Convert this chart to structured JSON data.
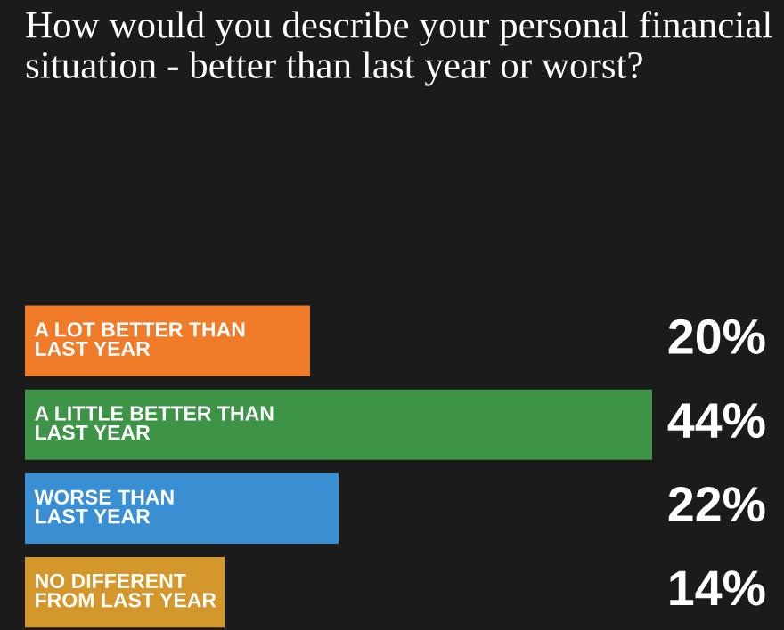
{
  "chart_data": {
    "type": "bar",
    "orientation": "horizontal",
    "title": "How would you describe your personal financial situation - better than last year or worst?",
    "categories": [
      "A LOT BETTER THAN\nLAST YEAR",
      "A LITTLE BETTER THAN\nLAST YEAR",
      "WORSE THAN\nLAST YEAR",
      "NO DIFFERENT\nFROM LAST YEAR"
    ],
    "values": [
      20,
      44,
      22,
      14
    ],
    "colors": [
      "#f07c2a",
      "#3d9447",
      "#3a8fd2",
      "#d4972c"
    ],
    "value_labels": [
      "20%",
      "44%",
      "22%",
      "14%"
    ]
  }
}
